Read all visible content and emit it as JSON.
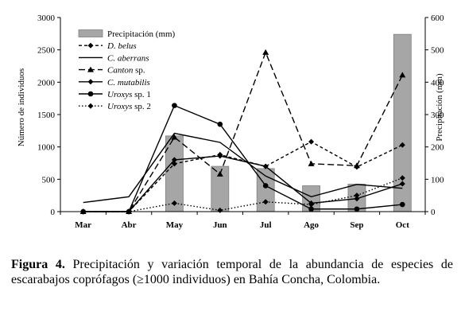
{
  "chart_data": {
    "type": "bar+line",
    "categories": [
      "Mar",
      "Abr",
      "May",
      "Jun",
      "Jul",
      "Ago",
      "Sep",
      "Oct"
    ],
    "ylabel": "Número de individuos",
    "y2label": "Precipitación (mm)",
    "ylim": [
      0,
      3000
    ],
    "y2lim": [
      0,
      600
    ],
    "yticks": [
      "0",
      "500",
      "1000",
      "1500",
      "2000",
      "2500",
      "3000"
    ],
    "y2ticks": [
      "0",
      "100",
      "200",
      "300",
      "400",
      "500",
      "600"
    ],
    "legend_position": "top-left",
    "bars": {
      "name": "Precipitación (mm)",
      "axis": "right",
      "color": "#a6a6a6",
      "values": [
        0,
        0,
        234,
        140,
        133,
        80,
        85,
        548
      ]
    },
    "series": [
      {
        "name": "D. belus",
        "italic": true,
        "suffix": "",
        "dash": "4,3",
        "marker": "diamond",
        "values": [
          0,
          0,
          740,
          880,
          700,
          1080,
          690,
          1030
        ]
      },
      {
        "name": "C. aberrans",
        "italic": true,
        "suffix": "",
        "dash": "",
        "marker": "none",
        "values": [
          140,
          230,
          1210,
          1070,
          550,
          230,
          420,
          360
        ]
      },
      {
        "name": "Canton",
        "italic": true,
        "suffix": " sp.",
        "dash": "8,4",
        "marker": "triangle",
        "values": [
          0,
          0,
          1150,
          580,
          2460,
          740,
          710,
          2110
        ]
      },
      {
        "name": "C. mutabilis",
        "italic": true,
        "suffix": "",
        "dash": "",
        "marker": "diamond",
        "values": [
          0,
          0,
          800,
          860,
          700,
          130,
          200,
          430
        ]
      },
      {
        "name": "Uroxys",
        "italic": true,
        "suffix": " sp. 1",
        "dash": "",
        "marker": "circle",
        "values": [
          0,
          0,
          1640,
          1350,
          400,
          40,
          40,
          110
        ]
      },
      {
        "name": "Uroxys",
        "italic": true,
        "suffix": " sp. 2",
        "dash": "1.5,2.5",
        "marker": "diamond",
        "values": [
          0,
          0,
          130,
          20,
          150,
          110,
          250,
          520
        ]
      }
    ]
  },
  "caption": {
    "label": "Figura 4.",
    "text": " Precipitación y variación temporal de la abundancia de especies de escarabajos coprófagos (≥1000 individuos) en Bahía Concha, Colombia."
  }
}
